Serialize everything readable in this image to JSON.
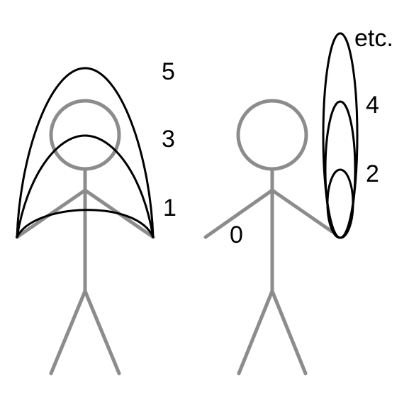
{
  "labels": {
    "left_five": "5",
    "left_three": "3",
    "left_one": "1",
    "right_zero": "0",
    "right_two": "2",
    "right_four": "4",
    "right_etc": "etc."
  },
  "colors": {
    "figure": "#8c8c8c",
    "curves": "#000000",
    "background": "#ffffff"
  }
}
